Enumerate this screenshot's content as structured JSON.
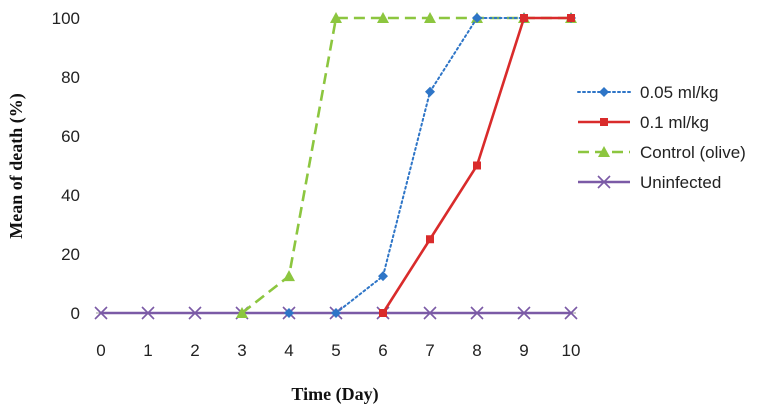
{
  "chart_data": {
    "type": "line",
    "title": "",
    "xlabel": "Time (Day)",
    "ylabel": "Mean of death (%)",
    "x": [
      0,
      1,
      2,
      3,
      4,
      5,
      6,
      7,
      8,
      9,
      10
    ],
    "xlim": [
      0,
      10
    ],
    "ylim": [
      0,
      100
    ],
    "yticks": [
      0,
      20,
      40,
      60,
      80,
      100
    ],
    "grid": false,
    "legend_position": "right",
    "series": [
      {
        "name": "0.05 ml/kg",
        "color": "#2e75c7",
        "line_style": "dotted",
        "marker": "diamond",
        "points": [
          [
            0,
            0
          ],
          [
            1,
            0
          ],
          [
            2,
            0
          ],
          [
            3,
            0
          ],
          [
            4,
            0
          ],
          [
            5,
            0
          ],
          [
            6,
            12.5
          ],
          [
            7,
            75
          ],
          [
            8,
            100
          ],
          [
            9,
            100
          ],
          [
            10,
            100
          ]
        ]
      },
      {
        "name": "0.1 ml/kg",
        "color": "#d92b2b",
        "line_style": "solid",
        "marker": "square",
        "points": [
          [
            0,
            0
          ],
          [
            1,
            0
          ],
          [
            2,
            0
          ],
          [
            3,
            0
          ],
          [
            4,
            0
          ],
          [
            5,
            0
          ],
          [
            6,
            0
          ],
          [
            7,
            25
          ],
          [
            8,
            50
          ],
          [
            9,
            100
          ],
          [
            10,
            100
          ]
        ]
      },
      {
        "name": "Control (olive)",
        "color": "#8cc63f",
        "line_style": "dashed",
        "marker": "triangle",
        "points": [
          [
            0,
            0
          ],
          [
            1,
            0
          ],
          [
            2,
            0
          ],
          [
            3,
            0
          ],
          [
            4,
            12.5
          ],
          [
            5,
            100
          ],
          [
            6,
            100
          ],
          [
            7,
            100
          ],
          [
            8,
            100
          ],
          [
            9,
            100
          ],
          [
            10,
            100
          ]
        ]
      },
      {
        "name": "Uninfected",
        "color": "#7b5aa6",
        "line_style": "solid",
        "marker": "x",
        "points": [
          [
            0,
            0
          ],
          [
            1,
            0
          ],
          [
            2,
            0
          ],
          [
            3,
            0
          ],
          [
            4,
            0
          ],
          [
            5,
            0
          ],
          [
            6,
            0
          ],
          [
            7,
            0
          ],
          [
            8,
            0
          ],
          [
            9,
            0
          ],
          [
            10,
            0
          ]
        ]
      }
    ]
  }
}
